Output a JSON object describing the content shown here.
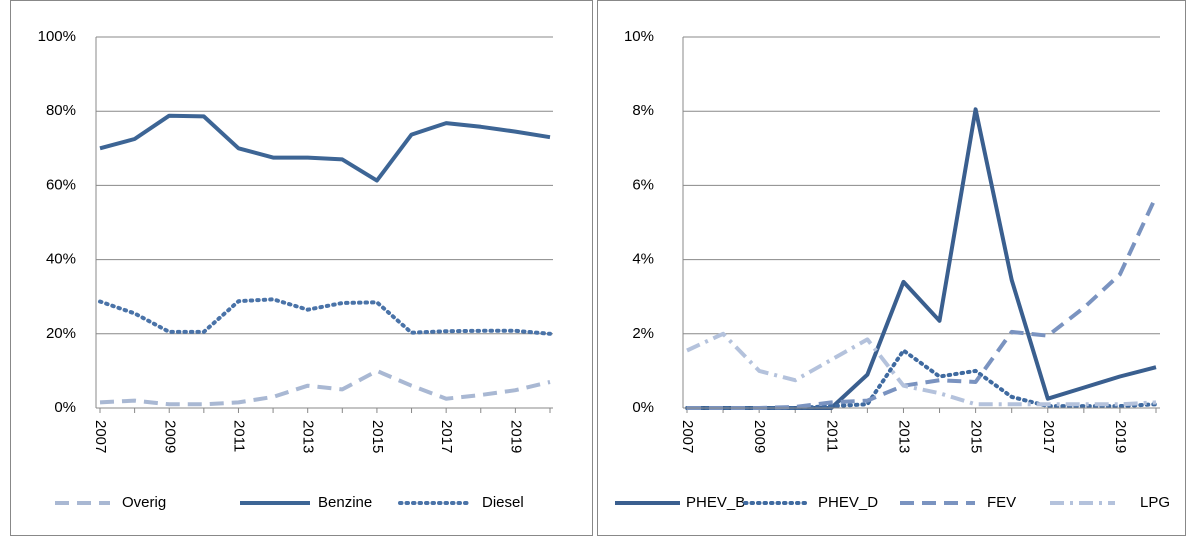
{
  "chart_data": [
    {
      "type": "line",
      "categories": [
        "2007",
        null,
        "2009",
        null,
        "2011",
        null,
        "2013",
        null,
        "2015",
        null,
        "2017",
        null,
        "2019",
        null
      ],
      "ylim": [
        0,
        100
      ],
      "yticks": [
        {
          "value": 0,
          "label": "0%"
        },
        {
          "value": 20,
          "label": "20%"
        },
        {
          "value": 40,
          "label": "40%"
        },
        {
          "value": 60,
          "label": "60%"
        },
        {
          "value": 80,
          "label": "80%"
        },
        {
          "value": 100,
          "label": "100%"
        }
      ],
      "grid": true,
      "legend": "bottom",
      "series": [
        {
          "name": "Overig",
          "color": "#a9b8d3",
          "style": "dashed",
          "values": [
            1.5,
            2,
            1,
            1,
            1.5,
            3,
            6,
            5,
            10,
            6,
            2.5,
            3.5,
            4.8,
            7
          ]
        },
        {
          "name": "Benzine",
          "color": "#3d6595",
          "style": "solid",
          "values": [
            70,
            72.5,
            78.8,
            78.6,
            70,
            67.5,
            67.5,
            67,
            61.3,
            73.7,
            76.8,
            75.8,
            74.5,
            73
          ]
        },
        {
          "name": "Diesel",
          "color": "#4a73a8",
          "style": "dotted",
          "values": [
            28.7,
            25.5,
            20.5,
            20.5,
            28.8,
            29.3,
            26.5,
            28.3,
            28.5,
            20.3,
            20.7,
            20.8,
            20.8,
            20
          ]
        }
      ]
    },
    {
      "type": "line",
      "categories": [
        "2007",
        null,
        "2009",
        null,
        "2011",
        null,
        "2013",
        null,
        "2015",
        null,
        "2017",
        null,
        "2019",
        null
      ],
      "ylim": [
        0,
        10
      ],
      "yticks": [
        {
          "value": 0,
          "label": "0%"
        },
        {
          "value": 2,
          "label": "2%"
        },
        {
          "value": 4,
          "label": "4%"
        },
        {
          "value": 6,
          "label": "6%"
        },
        {
          "value": 8,
          "label": "8%"
        },
        {
          "value": 10,
          "label": "10%"
        }
      ],
      "grid": true,
      "legend": "bottom",
      "series": [
        {
          "name": "PHEV_B",
          "color": "#3a5f8f",
          "style": "solid",
          "values": [
            0,
            0,
            0,
            0,
            0,
            0.9,
            3.4,
            2.35,
            8.05,
            3.45,
            0.25,
            0.55,
            0.85,
            1.1
          ]
        },
        {
          "name": "PHEV_D",
          "color": "#3f6aa0",
          "style": "dotted",
          "values": [
            0,
            0,
            0,
            0,
            0.05,
            0.1,
            1.55,
            0.85,
            1,
            0.3,
            0.05,
            0.05,
            0.05,
            0.1
          ]
        },
        {
          "name": "FEV",
          "color": "#7a93c0",
          "style": "dashed",
          "values": [
            0,
            0,
            0,
            0.03,
            0.15,
            0.2,
            0.6,
            0.75,
            0.7,
            2.05,
            1.95,
            2.7,
            3.6,
            5.7
          ]
        },
        {
          "name": "LPG",
          "color": "#b4c2dc",
          "style": "dashdot",
          "values": [
            1.55,
            2,
            1,
            0.75,
            1.3,
            1.85,
            0.6,
            0.4,
            0.1,
            0.1,
            0.1,
            0.1,
            0.1,
            0.15
          ]
        }
      ]
    }
  ]
}
